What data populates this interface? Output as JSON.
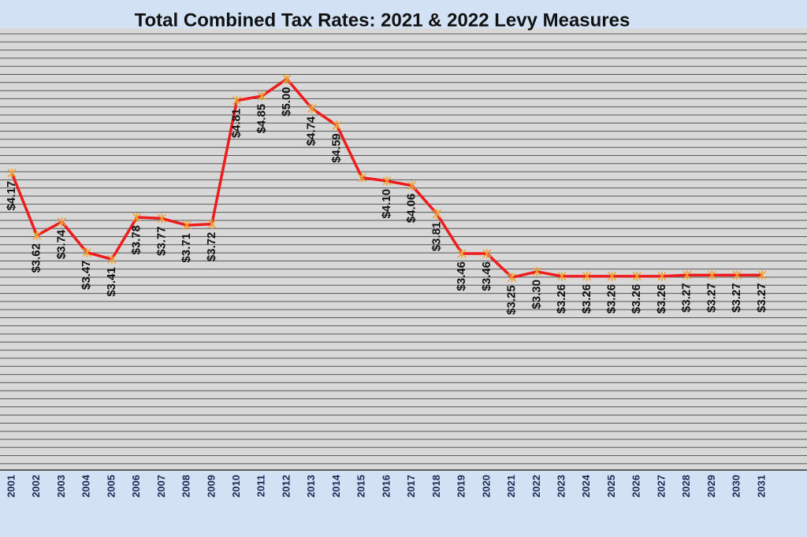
{
  "chart_data": {
    "type": "line",
    "title": "Total Combined Tax Rates: 2021 & 2022 Levy Measures",
    "categories": [
      "2001",
      "2002",
      "2003",
      "2004",
      "2005",
      "2006",
      "2007",
      "2008",
      "2009",
      "2010",
      "2011",
      "2012",
      "2013",
      "2014",
      "2015",
      "2016",
      "2017",
      "2018",
      "2019",
      "2020",
      "2021",
      "2022",
      "2023",
      "2024",
      "2025",
      "2026",
      "2027",
      "2028",
      "2029",
      "2030",
      "2031"
    ],
    "series": [
      {
        "color": "#ee1c1c",
        "values": [
          4.17,
          3.62,
          3.74,
          3.47,
          3.41,
          3.78,
          3.77,
          3.71,
          3.72,
          4.81,
          4.85,
          5.0,
          4.74,
          4.59,
          4.13,
          4.1,
          4.06,
          3.81,
          3.46,
          3.46,
          3.25,
          3.3,
          3.26,
          3.26,
          3.26,
          3.26,
          3.26,
          3.27,
          3.27,
          3.27,
          3.27
        ],
        "value_labels": [
          "$4.17",
          "$3.62",
          "$3.74",
          "$3.47",
          "$3.41",
          "$3.78",
          "$3.77",
          "$3.71",
          "$3.72",
          "$4.81",
          "$4.85",
          "$5.00",
          "$4.74",
          "$4.59",
          null,
          "$4.10",
          "$4.06",
          "$3.81",
          "$3.46",
          "$3.46",
          "$3.25",
          "$3.30",
          "$3.26",
          "$3.26",
          "$3.26",
          "$3.26",
          "$3.26",
          "$3.27",
          "$3.27",
          "$3.27",
          "$3.27"
        ]
      }
    ],
    "ylim": [
      1.55,
      5.44
    ],
    "grid": true,
    "marker_color": "#f0a030"
  }
}
